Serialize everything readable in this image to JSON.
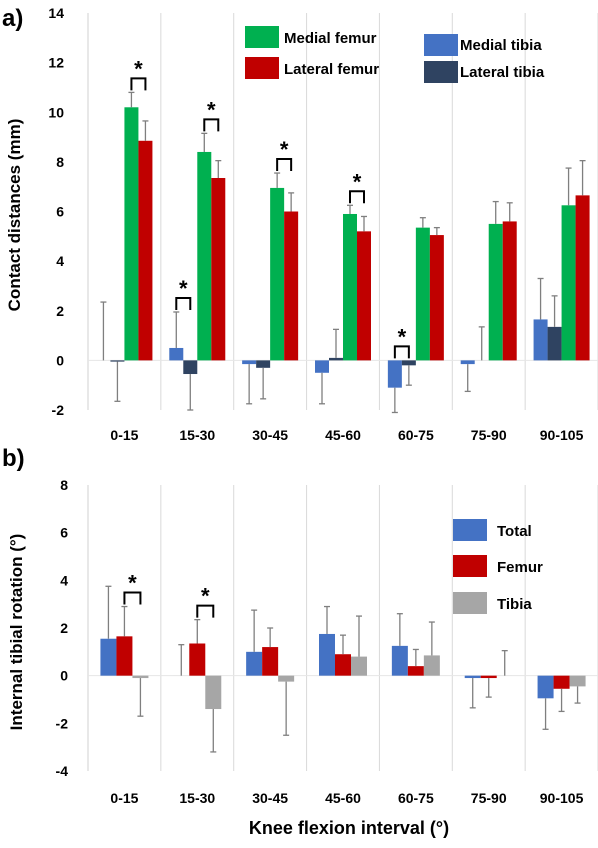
{
  "chart_data": [
    {
      "panel": "a)",
      "type": "bar",
      "ylabel": "Contact distances (mm)",
      "ylim": [
        -2,
        14
      ],
      "yticks": [
        -2,
        0,
        2,
        4,
        6,
        8,
        10,
        12,
        14
      ],
      "grid": "vertical dividers between categories",
      "legend_placement": "top",
      "categories": [
        "0-15",
        "15-30",
        "30-45",
        "45-60",
        "60-75",
        "75-90",
        "90-105"
      ],
      "series": [
        {
          "name": "Medial tibia",
          "color": "#4472c4",
          "values": [
            0,
            0.5,
            -0.15,
            -0.5,
            -1.1,
            -0.15,
            1.65
          ],
          "errors": [
            2.35,
            1.45,
            1.6,
            1.25,
            1.0,
            1.1,
            1.65
          ]
        },
        {
          "name": "Lateral tibia",
          "color": "#2f4361",
          "values": [
            -0.05,
            -0.55,
            -0.3,
            0.1,
            -0.2,
            0,
            1.35
          ],
          "errors": [
            1.6,
            1.45,
            1.25,
            1.15,
            0.8,
            1.35,
            1.25
          ]
        },
        {
          "name": "Medial femur",
          "color": "#00b050",
          "values": [
            10.2,
            8.4,
            6.95,
            5.9,
            5.35,
            5.5,
            6.25
          ],
          "errors": [
            0.6,
            0.75,
            0.6,
            0.35,
            0.4,
            0.9,
            1.5
          ]
        },
        {
          "name": "Lateral femur",
          "color": "#c00000",
          "values": [
            8.85,
            7.35,
            6.0,
            5.2,
            5.05,
            5.6,
            6.65
          ],
          "errors": [
            0.8,
            0.7,
            0.75,
            0.6,
            0.3,
            0.75,
            1.4
          ]
        }
      ],
      "significance": [
        {
          "category": "0-15",
          "pair": [
            "Medial femur",
            "Lateral femur"
          ],
          "label": "*"
        },
        {
          "category": "15-30",
          "pair": [
            "Medial tibia",
            "Lateral tibia"
          ],
          "label": "*"
        },
        {
          "category": "15-30",
          "pair": [
            "Medial femur",
            "Lateral femur"
          ],
          "label": "*"
        },
        {
          "category": "30-45",
          "pair": [
            "Medial femur",
            "Lateral femur"
          ],
          "label": "*"
        },
        {
          "category": "45-60",
          "pair": [
            "Medial femur",
            "Lateral femur"
          ],
          "label": "*"
        },
        {
          "category": "60-75",
          "pair": [
            "Medial tibia",
            "Lateral tibia"
          ],
          "label": "*"
        }
      ]
    },
    {
      "panel": "b)",
      "type": "bar",
      "ylabel": "Internal tibial rotation (°)",
      "xlabel": "Knee flexion interval (°)",
      "ylim": [
        -4,
        8
      ],
      "yticks": [
        -4,
        -2,
        0,
        2,
        4,
        6,
        8
      ],
      "grid": "vertical dividers between categories",
      "legend_placement": "right",
      "categories": [
        "0-15",
        "15-30",
        "30-45",
        "45-60",
        "60-75",
        "75-90",
        "90-105"
      ],
      "series": [
        {
          "name": "Total",
          "color": "#4472c4",
          "values": [
            1.55,
            0,
            1.0,
            1.75,
            1.25,
            -0.1,
            -0.95
          ],
          "errors": [
            2.2,
            1.3,
            1.75,
            1.15,
            1.35,
            1.25,
            1.3
          ]
        },
        {
          "name": "Femur",
          "color": "#c00000",
          "values": [
            1.65,
            1.35,
            1.2,
            0.9,
            0.4,
            -0.1,
            -0.55
          ],
          "errors": [
            1.25,
            1.0,
            0.8,
            0.8,
            0.7,
            0.8,
            0.95
          ]
        },
        {
          "name": "Tibia",
          "color": "#a6a6a6",
          "values": [
            -0.1,
            -1.4,
            -0.25,
            0.8,
            0.85,
            0,
            -0.45
          ],
          "errors": [
            1.6,
            1.8,
            2.25,
            1.7,
            1.4,
            1.05,
            0.7
          ]
        }
      ],
      "significance": [
        {
          "category": "0-15",
          "pair": [
            "Femur",
            "Tibia"
          ],
          "label": "*"
        },
        {
          "category": "15-30",
          "pair": [
            "Femur",
            "Tibia"
          ],
          "label": "*"
        }
      ]
    }
  ]
}
